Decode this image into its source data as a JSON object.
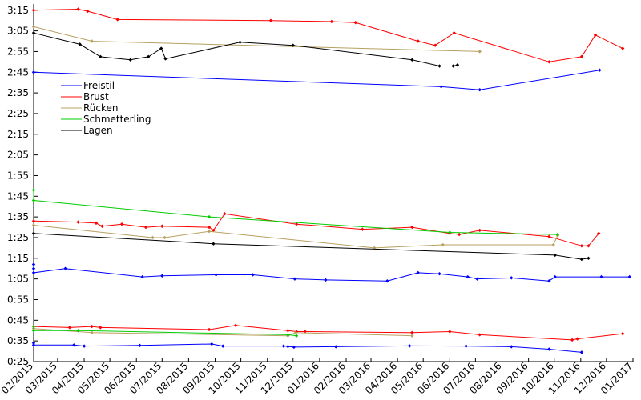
{
  "chart_data": {
    "type": "line",
    "title": "",
    "xlabel": "",
    "ylabel": "",
    "grid": false,
    "legend_position": "top-left",
    "x_ticks": [
      "02/2015",
      "03/2015",
      "04/2015",
      "05/2015",
      "06/2015",
      "07/2015",
      "08/2015",
      "09/2015",
      "10/2015",
      "11/2015",
      "12/2015",
      "01/2016",
      "02/2016",
      "03/2016",
      "04/2016",
      "05/2016",
      "06/2016",
      "07/2016",
      "08/2016",
      "09/2016",
      "10/2016",
      "11/2016",
      "12/2016",
      "01/2017"
    ],
    "x_range": [
      "2015-02-01",
      "2017-01-01"
    ],
    "y_ticks": [
      "0:25",
      "0:35",
      "0:45",
      "0:55",
      "1:05",
      "1:15",
      "1:25",
      "1:35",
      "1:45",
      "1:55",
      "2:05",
      "2:15",
      "2:25",
      "2:35",
      "2:45",
      "2:55",
      "3:05",
      "3:15"
    ],
    "y_range_seconds": [
      25,
      198
    ],
    "series": [
      {
        "name": "Freistil",
        "color": "#0000ff",
        "groups": [
          [
            [
              "2015-02-01",
              165
            ],
            [
              "2016-05-22",
              158
            ],
            [
              "2016-07-06",
              156.5
            ],
            [
              "2016-11-23",
              166
            ]
          ],
          [
            [
              "2015-02-01",
              72
            ],
            [
              "2015-02-01",
              70
            ],
            [
              "2015-02-01",
              68
            ],
            [
              "2015-03-10",
              70
            ],
            [
              "2015-06-08",
              66
            ],
            [
              "2015-07-01",
              66.5
            ],
            [
              "2015-09-02",
              67
            ],
            [
              "2015-10-15",
              67
            ],
            [
              "2015-12-03",
              65
            ],
            [
              "2016-01-08",
              64.5
            ],
            [
              "2016-03-20",
              64
            ],
            [
              "2016-04-25",
              68
            ],
            [
              "2016-05-20",
              67.5
            ],
            [
              "2016-06-22",
              66
            ],
            [
              "2016-07-03",
              65
            ],
            [
              "2016-08-12",
              65.5
            ],
            [
              "2016-09-25",
              64
            ],
            [
              "2016-10-02",
              66
            ],
            [
              "2016-11-25",
              66
            ],
            [
              "2016-12-28",
              66
            ]
          ],
          [
            [
              "2015-02-01",
              34
            ],
            [
              "2015-02-01",
              33
            ],
            [
              "2015-03-20",
              33
            ],
            [
              "2015-04-01",
              32.5
            ],
            [
              "2015-06-05",
              32.8
            ],
            [
              "2015-08-28",
              33.5
            ],
            [
              "2015-09-10",
              32.5
            ],
            [
              "2015-11-20",
              32.5
            ],
            [
              "2015-11-25",
              32.3
            ],
            [
              "2015-12-02",
              32
            ],
            [
              "2016-01-20",
              32.2
            ],
            [
              "2016-04-15",
              32.6
            ],
            [
              "2016-06-20",
              32.5
            ],
            [
              "2016-08-12",
              32.2
            ],
            [
              "2016-09-25",
              31
            ],
            [
              "2016-11-02",
              29.5
            ]
          ]
        ]
      },
      {
        "name": "Brust",
        "color": "#ff0000",
        "groups": [
          [
            [
              "2015-02-01",
              195
            ],
            [
              "2015-03-25",
              195.5
            ],
            [
              "2015-04-05",
              194.5
            ],
            [
              "2015-05-10",
              190.5
            ],
            [
              "2015-11-05",
              190
            ],
            [
              "2016-01-15",
              189.5
            ],
            [
              "2016-02-12",
              189
            ],
            [
              "2016-04-25",
              180
            ],
            [
              "2016-05-15",
              178
            ],
            [
              "2016-06-06",
              184
            ],
            [
              "2016-09-25",
              170
            ],
            [
              "2016-11-02",
              172.5
            ],
            [
              "2016-11-18",
              183
            ],
            [
              "2016-12-20",
              176.5
            ]
          ],
          [
            [
              "2015-02-01",
              93
            ],
            [
              "2015-03-25",
              92.5
            ],
            [
              "2015-04-15",
              92
            ],
            [
              "2015-04-22",
              90.5
            ],
            [
              "2015-05-15",
              91.5
            ],
            [
              "2015-06-12",
              90
            ],
            [
              "2015-07-01",
              90.5
            ],
            [
              "2015-08-25",
              90
            ],
            [
              "2015-08-30",
              88.5
            ],
            [
              "2015-09-12",
              96.5
            ],
            [
              "2015-12-05",
              91.5
            ],
            [
              "2016-02-20",
              89
            ],
            [
              "2016-04-18",
              90
            ],
            [
              "2016-06-01",
              87
            ],
            [
              "2016-06-12",
              86.5
            ],
            [
              "2016-07-06",
              88.5
            ],
            [
              "2016-09-25",
              85.5
            ],
            [
              "2016-11-02",
              81
            ],
            [
              "2016-11-10",
              81
            ],
            [
              "2016-11-22",
              87
            ]
          ],
          [
            [
              "2015-02-01",
              42
            ],
            [
              "2015-03-15",
              41.5
            ],
            [
              "2015-04-10",
              42
            ],
            [
              "2015-04-20",
              41.5
            ],
            [
              "2015-08-25",
              40.5
            ],
            [
              "2015-09-25",
              42.5
            ],
            [
              "2015-11-25",
              40
            ],
            [
              "2015-12-05",
              39.5
            ],
            [
              "2015-12-15",
              39.5
            ],
            [
              "2016-04-18",
              39
            ],
            [
              "2016-06-01",
              39.5
            ],
            [
              "2016-07-06",
              38
            ],
            [
              "2016-10-22",
              35.5
            ],
            [
              "2016-10-28",
              36
            ],
            [
              "2016-12-20",
              38.5
            ]
          ]
        ]
      },
      {
        "name": "Rücken",
        "color": "#b8a060",
        "groups": [
          [
            [
              "2015-02-01",
              187
            ],
            [
              "2015-04-10",
              180
            ],
            [
              "2016-07-06",
              175
            ]
          ],
          [
            [
              "2015-02-01",
              91
            ],
            [
              "2015-06-20",
              85
            ],
            [
              "2015-07-04",
              85
            ],
            [
              "2015-08-25",
              88
            ],
            [
              "2016-03-05",
              80
            ],
            [
              "2016-05-24",
              81.5
            ],
            [
              "2016-09-30",
              81.5
            ],
            [
              "2016-10-05",
              86
            ]
          ],
          [
            [
              "2015-02-01",
              41
            ],
            [
              "2015-04-10",
              39
            ],
            [
              "2015-11-25",
              37.5
            ],
            [
              "2015-12-04",
              39
            ],
            [
              "2016-04-18",
              37.5
            ]
          ]
        ]
      },
      {
        "name": "Schmetterling",
        "color": "#00cc00",
        "groups": [
          [
            [
              "2015-02-01",
              108
            ],
            [
              "2015-02-01",
              103
            ],
            [
              "2015-08-25",
              95
            ],
            [
              "2016-06-01",
              87.5
            ],
            [
              "2016-10-05",
              86.5
            ]
          ],
          [
            [
              "2015-02-01",
              42
            ],
            [
              "2015-02-01",
              40
            ],
            [
              "2015-03-25",
              40
            ],
            [
              "2015-11-25",
              38
            ],
            [
              "2015-12-05",
              37.5
            ]
          ]
        ]
      },
      {
        "name": "Lagen",
        "color": "#000000",
        "groups": [
          [
            [
              "2015-02-01",
              184
            ],
            [
              "2015-03-27",
              178.5
            ],
            [
              "2015-04-20",
              172.5
            ],
            [
              "2015-05-25",
              171
            ],
            [
              "2015-06-15",
              172.5
            ],
            [
              "2015-06-30",
              176.5
            ],
            [
              "2015-07-05",
              171.5
            ],
            [
              "2015-09-30",
              179.5
            ],
            [
              "2015-12-01",
              178
            ],
            [
              "2016-04-18",
              171
            ],
            [
              "2016-05-20",
              168
            ],
            [
              "2016-06-05",
              168
            ],
            [
              "2016-06-10",
              168.5
            ]
          ],
          [
            [
              "2015-02-01",
              87
            ],
            [
              "2015-08-30",
              82
            ],
            [
              "2016-10-02",
              76.5
            ],
            [
              "2016-11-02",
              74.5
            ],
            [
              "2016-11-10",
              75
            ]
          ]
        ]
      }
    ]
  }
}
